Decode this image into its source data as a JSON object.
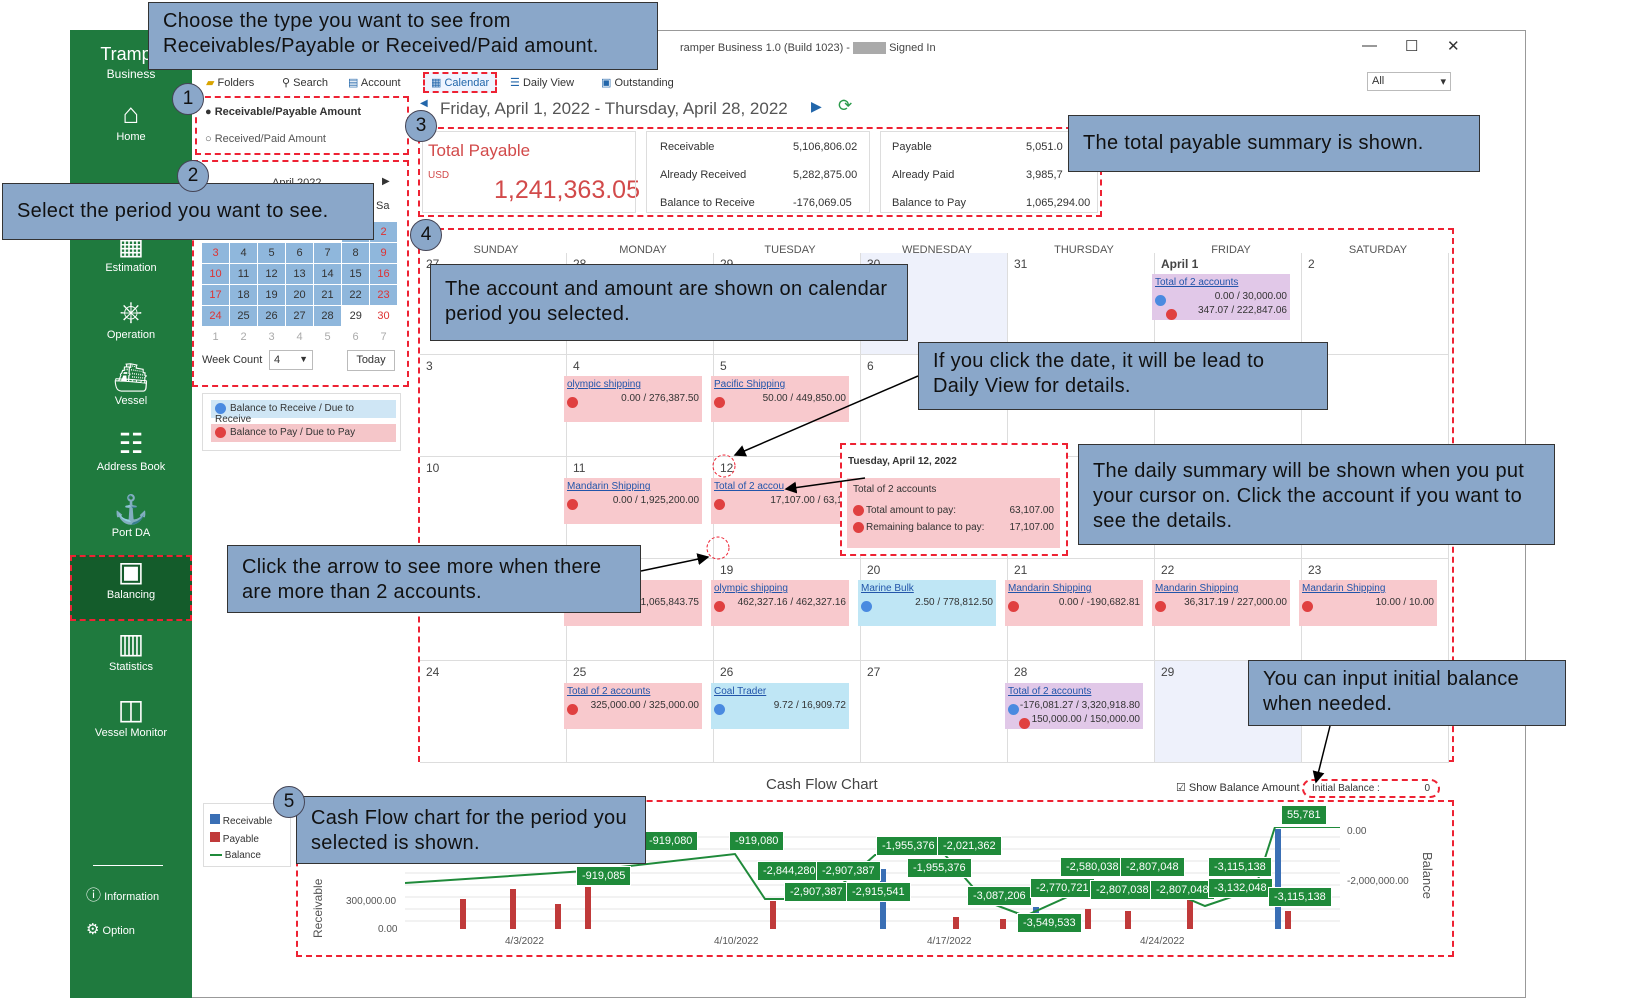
{
  "app": {
    "brand": "Trampe",
    "brand_sub": "Business",
    "title": "ramper Business 1.0 (Build 1023) - ",
    "title_suffix": "Signed In"
  },
  "sidebar": {
    "items": [
      {
        "label": "Home",
        "icon": "home-icon",
        "glyph": "⌂"
      },
      {
        "label": "Estimation",
        "icon": "calculator-icon",
        "glyph": "▦"
      },
      {
        "label": "Operation",
        "icon": "helm-icon",
        "glyph": "⎈"
      },
      {
        "label": "Vessel",
        "icon": "ship-icon",
        "glyph": "⛴"
      },
      {
        "label": "Address Book",
        "icon": "address-book-icon",
        "glyph": "☷"
      },
      {
        "label": "Port DA",
        "icon": "port-icon",
        "glyph": "⚓"
      },
      {
        "label": "Balancing",
        "icon": "balancing-icon",
        "glyph": "▣"
      },
      {
        "label": "Statistics",
        "icon": "statistics-icon",
        "glyph": "▥"
      },
      {
        "label": "Vessel Monitor",
        "icon": "map-icon",
        "glyph": "◫"
      }
    ],
    "information": "Information",
    "option": "Option"
  },
  "toolbar": {
    "folders": "Folders",
    "search": "Search",
    "account": "Account",
    "calendar": "Calendar",
    "daily": "Daily View",
    "outstanding": "Outstanding",
    "filter": "All"
  },
  "options": {
    "receivable": "Receivable/Payable Amount",
    "received": "Received/Paid Amount"
  },
  "mini": {
    "month": "April 2022",
    "sa": "Sa",
    "week_count_label": "Week Count",
    "week_count": "4",
    "today": "Today",
    "rows": [
      [
        "",
        "",
        "",
        "",
        "",
        "1",
        "2"
      ],
      [
        "3",
        "4",
        "5",
        "6",
        "7",
        "8",
        "9"
      ],
      [
        "10",
        "11",
        "12",
        "13",
        "14",
        "15",
        "16"
      ],
      [
        "17",
        "18",
        "19",
        "20",
        "21",
        "22",
        "23"
      ],
      [
        "24",
        "25",
        "26",
        "27",
        "28",
        "29",
        "30"
      ],
      [
        "1",
        "2",
        "3",
        "4",
        "5",
        "6",
        "7"
      ]
    ]
  },
  "legend_top": {
    "receive": "Balance to Receive / Due to Receive",
    "pay": "Balance to Pay / Due to Pay"
  },
  "header": {
    "range": "Friday, April 1, 2022 - Thursday, April 28, 2022"
  },
  "summary": {
    "title": "Total Payable",
    "currency": "USD",
    "amount": "1,241,363.05",
    "recv": [
      [
        "Receivable",
        "5,106,806.02"
      ],
      [
        "Already Received",
        "5,282,875.00"
      ],
      [
        "Balance to Receive",
        "-176,069.05"
      ]
    ],
    "pay": [
      [
        "Payable",
        "5,051.0"
      ],
      [
        "Already Paid",
        "3,985,7"
      ],
      [
        "Balance to Pay",
        "1,065,294.00"
      ]
    ]
  },
  "days": [
    "SUNDAY",
    "MONDAY",
    "TUESDAY",
    "WEDNESDAY",
    "THURSDAY",
    "FRIDAY",
    "SATURDAY"
  ],
  "calendar": {
    "row1": [
      "27",
      "28",
      "29",
      "30",
      "31",
      "April 1",
      "2"
    ],
    "row2": [
      "3",
      "4",
      "5",
      "6",
      "",
      "",
      ""
    ],
    "row3": [
      "10",
      "11",
      "12",
      "",
      "",
      "",
      ""
    ],
    "row4": [
      "",
      "",
      "19",
      "20",
      "21",
      "22",
      "23"
    ],
    "row5": [
      "24",
      "25",
      "26",
      "27",
      "28",
      "29",
      ""
    ]
  },
  "events": {
    "apr1": {
      "name": "Total of 2 accounts",
      "a1": "0.00 / 30,000.00",
      "a2": "347.07 / 222,847.06"
    },
    "apr4": {
      "name": "olympic shipping",
      "a1": "0.00 / 276,387.50"
    },
    "apr5": {
      "name": "Pacific Shipping",
      "a1": "50.00 / 449,850.00"
    },
    "apr11": {
      "name": "Mandarin Shipping",
      "a1": "0.00 / 1,925,200.00"
    },
    "apr12": {
      "name": "Total of 2 accou",
      "a1": "17,107.00 / 63,1("
    },
    "apr18": {
      "a1": "/ 1,065,843.75",
      "name": "ts"
    },
    "apr19": {
      "name": "olympic shipping",
      "a1": "462,327.16 / 462,327.16"
    },
    "apr20": {
      "name": "Marine Bulk",
      "a1": "2.50 / 778,812.50"
    },
    "apr21": {
      "name": "Mandarin Shipping",
      "a1": "0.00 / -190,682.81"
    },
    "apr22": {
      "name": "Mandarin Shipping",
      "a1": "36,317.19 / 227,000.00"
    },
    "apr23": {
      "name": "Mandarin Shipping",
      "a1": "10.00 / 10.00"
    },
    "apr25": {
      "name": "Total of 2 accounts",
      "a1": "325,000.00 / 325,000.00"
    },
    "apr26": {
      "name": "Coal Trader",
      "a1": "9.72 / 16,909.72"
    },
    "apr28": {
      "name": "Total of 2 accounts",
      "a1": "-176,081.27 / 3,320,918.80",
      "a2": "150,000.00 / 150,000.00"
    }
  },
  "tooltip": {
    "date": "Tuesday, April 12, 2022",
    "total": "Total of 2 accounts",
    "line1": "Total amount to pay:",
    "v1": "63,107.00",
    "line2": "Remaining balance to pay:",
    "v2": "17,107.00"
  },
  "chart_panel": {
    "title": "Cash Flow Chart",
    "show_balance": "Show Balance Amount",
    "initial_label": "Initial Balance :",
    "initial_value": "0",
    "legend": [
      "Receivable",
      "Payable",
      "Balance"
    ],
    "y_left_label": "Receivable",
    "y_right_label": "Balance",
    "y_ticks": [
      "300,000.00",
      "0.00"
    ],
    "y_right_ticks": [
      "0.00",
      "-2,000,000.00"
    ],
    "x_ticks": [
      "4/3/2022",
      "4/10/2022",
      "4/17/2022",
      "4/24/2022"
    ]
  },
  "chart_data": {
    "type": "bar",
    "title": "Cash Flow Chart",
    "xlabel": "",
    "ylabel": "Receivable",
    "y2label": "Balance",
    "categories": [
      "4/3/2022",
      "4/10/2022",
      "4/17/2022",
      "4/24/2022"
    ],
    "balance_labels": [
      "-919,085",
      "-919,080",
      "-919,080",
      "-2,844,280",
      "-2,907,387",
      "-2,907,387",
      "-2,915,541",
      "-1,955,376",
      "-1,955,376",
      "-2,021,362",
      "-3,087,206",
      "-3,549,533",
      "-2,770,721",
      "-2,580,038",
      "-2,807,038",
      "-2,807,048",
      "-2,807,048",
      "-3,115,138",
      "-3,132,048",
      "-3,115,138",
      "55,781"
    ],
    "colors": {
      "receivable": "#3a6fb5",
      "payable": "#c03a3a",
      "balance": "#1f8a3a"
    }
  },
  "callouts": {
    "c1": "Choose the type you want to see from Receivables/Payable or Received/Paid amount.",
    "c2": "Select the period you want to see.",
    "c3": "The total payable summary is shown.",
    "c4": "The account and amount are shown on calendar period you selected.",
    "c5": "If you click the date, it will be lead to Daily View for details.",
    "c6": "The daily summary will be shown when you put your cursor on. Click the account if you want to see the details.",
    "c7": "Click the arrow to see more when there are more than 2 accounts.",
    "c8": "You can input initial balance when needed.",
    "c9": "Cash Flow chart for the period you selected is shown."
  },
  "badges": [
    "1",
    "2",
    "3",
    "4",
    "5"
  ]
}
